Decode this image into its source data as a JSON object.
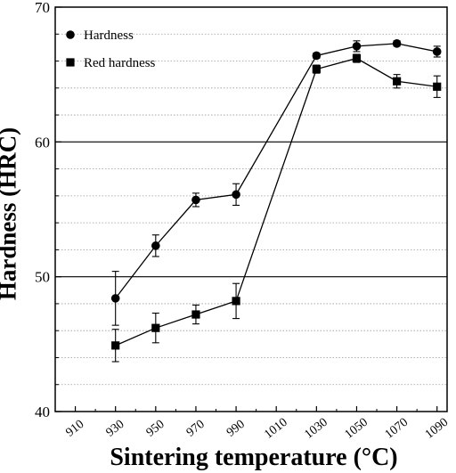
{
  "chart_data": {
    "type": "line",
    "xlabel": "Sintering temperature (°C)",
    "ylabel": "Hardness (HRC)",
    "x_ticks": [
      910,
      930,
      950,
      970,
      990,
      1010,
      1030,
      1050,
      1070,
      1090
    ],
    "y_ticks": [
      40,
      50,
      60,
      70
    ],
    "xlim": [
      900,
      1095
    ],
    "ylim": [
      40,
      70
    ],
    "grid": "horizontal, dotted minor lines every 2, solid at 50 and 60",
    "legend_position": "top-left",
    "series": [
      {
        "name": "Hardness",
        "marker": "circle",
        "x": [
          930,
          950,
          970,
          990,
          1030,
          1050,
          1070,
          1090
        ],
        "y": [
          48.4,
          52.3,
          55.7,
          56.1,
          66.4,
          67.1,
          67.3,
          66.7
        ],
        "error": [
          2.0,
          0.8,
          0.5,
          0.8,
          0.2,
          0.4,
          0.2,
          0.4
        ]
      },
      {
        "name": "Red hardness",
        "marker": "square",
        "x": [
          930,
          950,
          970,
          990,
          1030,
          1050,
          1070,
          1090
        ],
        "y": [
          44.9,
          46.2,
          47.2,
          48.2,
          65.4,
          66.2,
          64.5,
          64.1
        ],
        "error": [
          1.2,
          1.1,
          0.7,
          1.3,
          0.3,
          0.3,
          0.5,
          0.8
        ]
      }
    ]
  }
}
